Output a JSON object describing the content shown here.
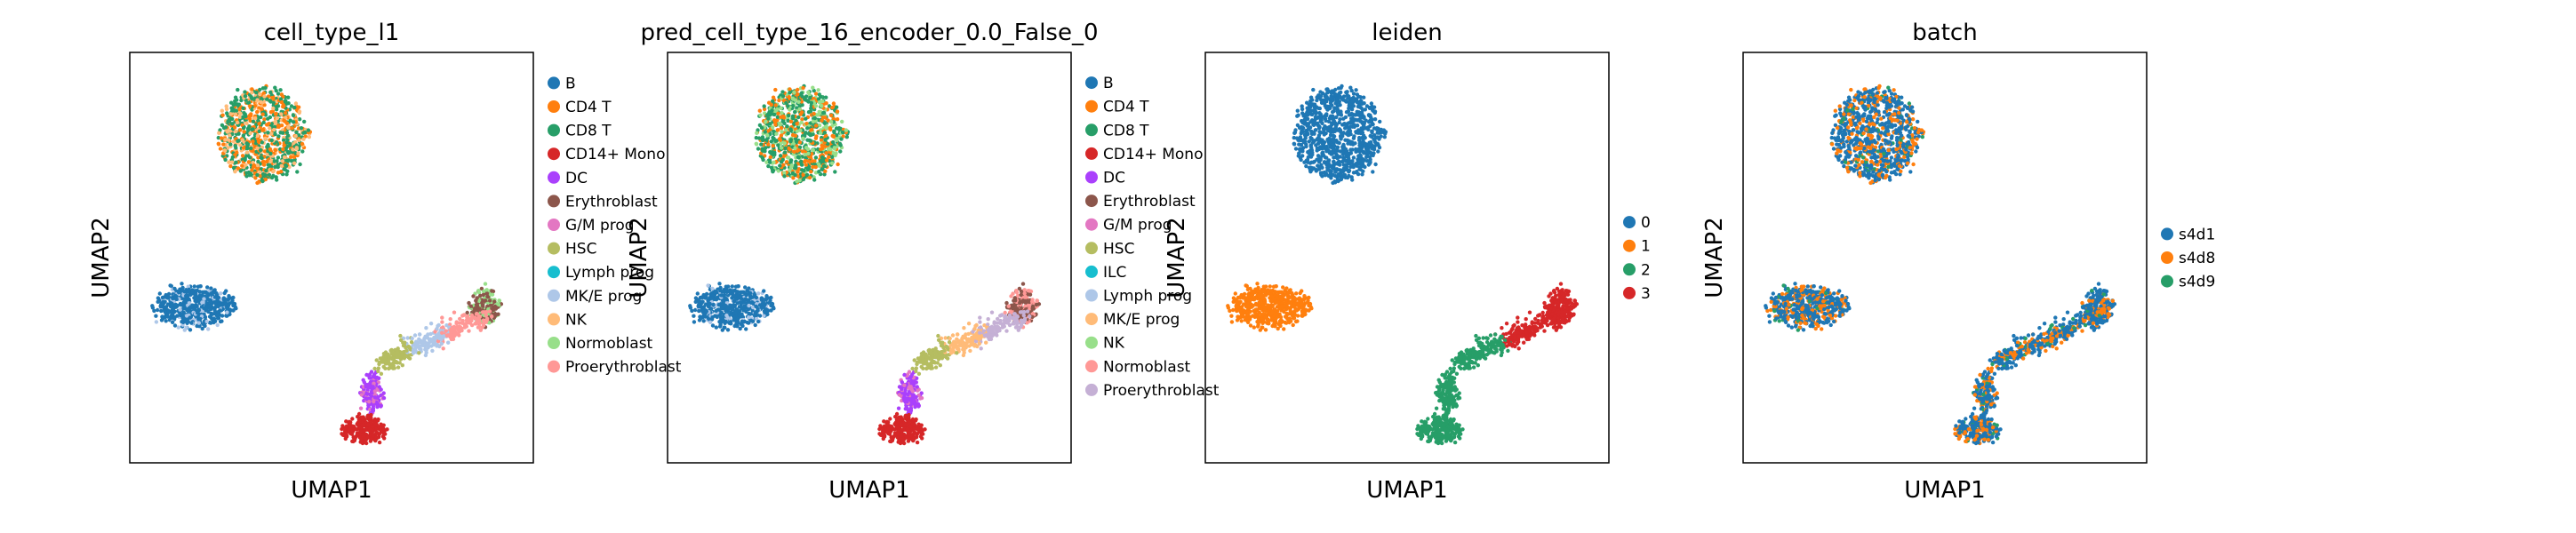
{
  "chart_data": [
    {
      "type": "scatter",
      "title": "cell_type_l1",
      "xlabel": "UMAP1",
      "ylabel": "UMAP2",
      "grid": false,
      "legend_placement": "right",
      "legend": [
        {
          "name": "B",
          "color": "#1f77b4"
        },
        {
          "name": "CD4 T",
          "color": "#ff7f0e"
        },
        {
          "name": "CD8 T",
          "color": "#279e68"
        },
        {
          "name": "CD14+ Mono",
          "color": "#d62728"
        },
        {
          "name": "DC",
          "color": "#aa40fc"
        },
        {
          "name": "Erythroblast",
          "color": "#8c564b"
        },
        {
          "name": "G/M prog",
          "color": "#e377c2"
        },
        {
          "name": "HSC",
          "color": "#b5bd61"
        },
        {
          "name": "Lymph prog",
          "color": "#17becf"
        },
        {
          "name": "MK/E prog",
          "color": "#aec7e8"
        },
        {
          "name": "NK",
          "color": "#ffbb78"
        },
        {
          "name": "Normoblast",
          "color": "#98df8a"
        },
        {
          "name": "Proerythroblast",
          "color": "#ff9896"
        }
      ]
    },
    {
      "type": "scatter",
      "title": "pred_cell_type_16_encoder_0.0_False_0",
      "xlabel": "UMAP1",
      "ylabel": "UMAP2",
      "grid": false,
      "legend_placement": "right",
      "legend": [
        {
          "name": "B",
          "color": "#1f77b4"
        },
        {
          "name": "CD4 T",
          "color": "#ff7f0e"
        },
        {
          "name": "CD8 T",
          "color": "#279e68"
        },
        {
          "name": "CD14+ Mono",
          "color": "#d62728"
        },
        {
          "name": "DC",
          "color": "#aa40fc"
        },
        {
          "name": "Erythroblast",
          "color": "#8c564b"
        },
        {
          "name": "G/M prog",
          "color": "#e377c2"
        },
        {
          "name": "HSC",
          "color": "#b5bd61"
        },
        {
          "name": "ILC",
          "color": "#17becf"
        },
        {
          "name": "Lymph prog",
          "color": "#aec7e8"
        },
        {
          "name": "MK/E prog",
          "color": "#ffbb78"
        },
        {
          "name": "NK",
          "color": "#98df8a"
        },
        {
          "name": "Normoblast",
          "color": "#ff9896"
        },
        {
          "name": "Proerythroblast",
          "color": "#c5b0d5"
        }
      ]
    },
    {
      "type": "scatter",
      "title": "leiden",
      "xlabel": "UMAP1",
      "ylabel": "UMAP2",
      "grid": false,
      "legend_placement": "right",
      "legend": [
        {
          "name": "0",
          "color": "#1f77b4"
        },
        {
          "name": "1",
          "color": "#ff7f0e"
        },
        {
          "name": "2",
          "color": "#279e68"
        },
        {
          "name": "3",
          "color": "#d62728"
        }
      ]
    },
    {
      "type": "scatter",
      "title": "batch",
      "xlabel": "UMAP1",
      "ylabel": "UMAP2",
      "grid": false,
      "legend_placement": "right",
      "legend": [
        {
          "name": "s4d1",
          "color": "#1f77b4"
        },
        {
          "name": "s4d8",
          "color": "#ff7f0e"
        },
        {
          "name": "s4d9",
          "color": "#279e68"
        }
      ]
    }
  ]
}
